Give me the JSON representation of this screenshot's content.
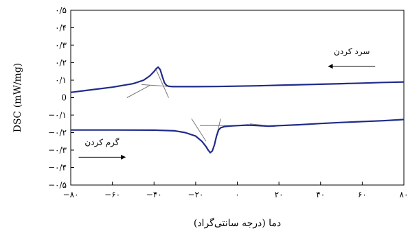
{
  "chart_data": {
    "type": "line",
    "title": "",
    "xlabel": "دما (درجه سانتی‌گراد)",
    "ylabel": "DSC (mW/mg)",
    "xlim": [
      -80,
      80
    ],
    "ylim": [
      -0.5,
      0.5
    ],
    "x_ticks": [
      -80,
      -60,
      -40,
      -20,
      0,
      20,
      40,
      60,
      80
    ],
    "x_tick_labels": [
      "−۸۰",
      "−۶۰",
      "−۴۰",
      "−۲۰",
      "۰",
      "۲۰",
      "۴۰",
      "۶۰",
      "۸۰"
    ],
    "y_ticks": [
      0.5,
      0.4,
      0.3,
      0.2,
      0.1,
      0,
      -0.1,
      -0.2,
      -0.3,
      -0.4,
      -0.5
    ],
    "y_tick_labels": [
      "۰/۵",
      "۰/۴",
      "۰/۳",
      "۰/۲",
      "۰/۱",
      "0",
      "−۰/۱",
      "−۰/۲",
      "−۰/۳",
      "−۰/۴",
      "−۰/۵"
    ],
    "grid": false,
    "legend": "none",
    "series": [
      {
        "x": [
          -80,
          -70,
          -60,
          -50,
          -45,
          -42,
          -40,
          -39,
          -38,
          -37,
          -36,
          -35,
          -34,
          -33,
          -31,
          -28,
          -20,
          -10,
          0,
          10,
          20,
          30,
          40,
          50,
          60,
          70,
          80
        ],
        "values": [
          0.03,
          0.045,
          0.06,
          0.08,
          0.1,
          0.125,
          0.15,
          0.165,
          0.175,
          0.16,
          0.12,
          0.085,
          0.07,
          0.065,
          0.063,
          0.063,
          0.063,
          0.064,
          0.066,
          0.068,
          0.071,
          0.074,
          0.077,
          0.08,
          0.083,
          0.087,
          0.09
        ]
      },
      {
        "x": [
          -80,
          -60,
          -40,
          -30,
          -25,
          -20,
          -17,
          -15,
          -14,
          -13,
          -12,
          -11,
          -10,
          -9,
          -8,
          -6,
          -3,
          0,
          5,
          10,
          15,
          20,
          30,
          40,
          50,
          60,
          70,
          80
        ],
        "values": [
          -0.185,
          -0.185,
          -0.186,
          -0.19,
          -0.2,
          -0.22,
          -0.25,
          -0.28,
          -0.3,
          -0.315,
          -0.305,
          -0.27,
          -0.22,
          -0.185,
          -0.172,
          -0.165,
          -0.162,
          -0.16,
          -0.157,
          -0.16,
          -0.163,
          -0.16,
          -0.155,
          -0.148,
          -0.142,
          -0.137,
          -0.132,
          -0.125
        ]
      }
    ],
    "annotations": [
      {
        "text": "سرد کردن",
        "x": 55,
        "y": 0.25,
        "arrow": "left"
      },
      {
        "text": "گرم کردن",
        "x": -65,
        "y": -0.27,
        "arrow": "right"
      }
    ],
    "tangent_lines": [
      {
        "from": [
          -53,
          0.0
        ],
        "to": [
          -42,
          0.07
        ]
      },
      {
        "from": [
          -46,
          0.075
        ],
        "to": [
          -30,
          0.062
        ]
      },
      {
        "from": [
          -39,
          0.16
        ],
        "to": [
          -33,
          0.0
        ]
      },
      {
        "from": [
          -22,
          -0.12
        ],
        "to": [
          -15,
          -0.25
        ]
      },
      {
        "from": [
          -10,
          -0.22
        ],
        "to": [
          -8,
          -0.12
        ]
      },
      {
        "from": [
          -18,
          -0.16
        ],
        "to": [
          12,
          -0.16
        ]
      },
      {
        "from": [
          6,
          -0.15
        ],
        "to": [
          18,
          -0.165
        ]
      }
    ]
  }
}
